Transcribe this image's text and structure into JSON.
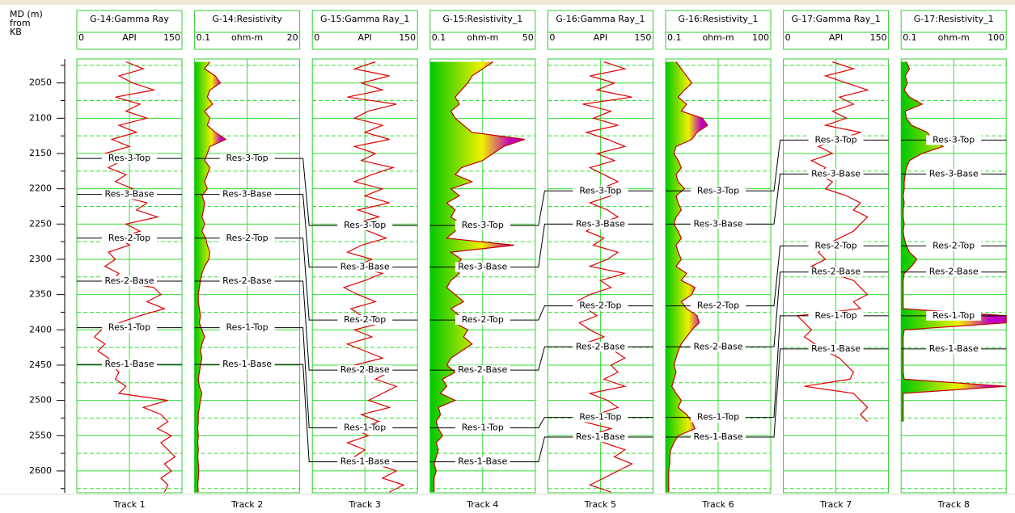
{
  "chart_data": {
    "type": "well_log",
    "depth_label": [
      "MD (m)",
      "from",
      "KB"
    ],
    "ylim": [
      2016,
      2631
    ],
    "yticks": [
      2050,
      2100,
      2150,
      2200,
      2250,
      2300,
      2350,
      2400,
      2450,
      2500,
      2550,
      2600
    ],
    "minor_yticks": [
      2025,
      2075,
      2125,
      2175,
      2225,
      2275,
      2325,
      2375,
      2425,
      2475,
      2525,
      2575,
      2625
    ],
    "grid": true,
    "fill_colors": [
      "#00c800",
      "#f0f000",
      "#c000c0"
    ],
    "depths": [
      2020,
      2030,
      2040,
      2050,
      2060,
      2070,
      2080,
      2090,
      2100,
      2110,
      2120,
      2130,
      2140,
      2150,
      2160,
      2170,
      2180,
      2190,
      2200,
      2210,
      2220,
      2230,
      2240,
      2250,
      2260,
      2270,
      2280,
      2290,
      2300,
      2310,
      2320,
      2330,
      2340,
      2350,
      2360,
      2370,
      2380,
      2390,
      2400,
      2410,
      2420,
      2430,
      2440,
      2450,
      2460,
      2470,
      2480,
      2490,
      2500,
      2510,
      2520,
      2530,
      2540,
      2550,
      2560,
      2570,
      2580,
      2590,
      2600,
      2610,
      2620,
      2630
    ],
    "tracks": [
      {
        "name": "Track 1",
        "title": "G-14:Gamma Ray",
        "unit": "API",
        "xlim": [
          0,
          150
        ],
        "color": "#e00000",
        "fill": false,
        "values": [
          70,
          95,
          60,
          80,
          110,
          55,
          90,
          70,
          100,
          60,
          85,
          50,
          75,
          40,
          65,
          45,
          70,
          55,
          80,
          60,
          100,
          85,
          115,
          70,
          90,
          60,
          75,
          45,
          55,
          40,
          60,
          50,
          110,
          120,
          100,
          125,
          90,
          60,
          35,
          25,
          40,
          30,
          45,
          50,
          60,
          55,
          70,
          60,
          130,
          95,
          120,
          130,
          115,
          135,
          120,
          130,
          140,
          125,
          135,
          120,
          130,
          125
        ]
      },
      {
        "name": "Track 2",
        "title": "G-14:Resistivity",
        "unit": "ohm-m",
        "xlim": [
          0.1,
          20
        ],
        "color": "#c00000",
        "fill": true,
        "values": [
          3,
          2,
          4,
          5,
          3,
          2.5,
          3.5,
          2,
          3,
          2.5,
          4,
          6,
          3,
          2.5,
          2,
          3,
          2.5,
          2,
          2.5,
          1.5,
          2,
          1.8,
          1.5,
          2,
          1.5,
          2.2,
          2.5,
          3,
          2.8,
          2,
          1.5,
          1.2,
          1,
          0.8,
          0.8,
          1,
          1.2,
          1,
          1.5,
          2,
          1.5,
          1.2,
          1.5,
          1.2,
          1,
          0.8,
          1,
          1.5,
          1.2,
          1,
          0.8,
          0.8,
          0.7,
          0.8,
          0.7,
          0.8,
          0.7,
          0.8,
          0.9,
          0.8,
          0.7,
          0.8
        ]
      },
      {
        "name": "Track 3",
        "title": "G-15:Gamma Ray_1",
        "unit": "API",
        "xlim": [
          0,
          150
        ],
        "color": "#e00000",
        "fill": false,
        "values": [
          90,
          60,
          110,
          70,
          100,
          50,
          120,
          80,
          60,
          100,
          75,
          110,
          60,
          90,
          70,
          115,
          85,
          60,
          100,
          75,
          110,
          65,
          95,
          55,
          80,
          105,
          70,
          50,
          85,
          60,
          100,
          75,
          45,
          65,
          90,
          55,
          70,
          100,
          60,
          85,
          50,
          75,
          100,
          60,
          110,
          90,
          120,
          100,
          80,
          110,
          70,
          95,
          60,
          80,
          50,
          75,
          60,
          90,
          120,
          100,
          130,
          110
        ]
      },
      {
        "name": "Track 4",
        "title": "G-15:Resistivity_1",
        "unit": "ohm-m",
        "xlim": [
          0.1,
          50
        ],
        "color": "#c00000",
        "fill": true,
        "values": [
          30,
          25,
          20,
          18,
          15,
          12,
          14,
          10,
          12,
          16,
          20,
          45,
          35,
          30,
          25,
          15,
          12,
          20,
          10,
          14,
          8,
          12,
          10,
          15,
          12,
          8,
          40,
          10,
          15,
          12,
          14,
          10,
          8,
          12,
          16,
          10,
          14,
          12,
          18,
          16,
          20,
          15,
          10,
          8,
          12,
          6,
          8,
          5,
          12,
          4,
          5,
          3,
          4,
          6,
          3,
          4,
          3,
          2,
          3,
          2,
          2,
          2
        ]
      },
      {
        "name": "Track 5",
        "title": "G-16:Gamma Ray_1",
        "unit": "API",
        "xlim": [
          0,
          150
        ],
        "color": "#e00000",
        "fill": false,
        "values": [
          80,
          110,
          60,
          95,
          70,
          120,
          50,
          90,
          65,
          100,
          55,
          85,
          110,
          70,
          95,
          60,
          80,
          100,
          75,
          90,
          60,
          85,
          100,
          70,
          55,
          80,
          65,
          100,
          85,
          60,
          110,
          75,
          90,
          60,
          40,
          55,
          70,
          45,
          60,
          80,
          50,
          95,
          110,
          90,
          100,
          80,
          110,
          60,
          85,
          100,
          70,
          50,
          90,
          60,
          80,
          110,
          95,
          120,
          100,
          80,
          60,
          90
        ]
      },
      {
        "name": "Track 6",
        "title": "G-16:Resistivity_1",
        "unit": "ohm-m",
        "xlim": [
          0.1,
          100
        ],
        "color": "#c00000",
        "fill": true,
        "values": [
          10,
          15,
          20,
          25,
          18,
          12,
          20,
          15,
          35,
          40,
          30,
          25,
          10,
          8,
          12,
          15,
          10,
          12,
          18,
          10,
          12,
          15,
          10,
          8,
          12,
          15,
          10,
          12,
          15,
          10,
          20,
          15,
          28,
          25,
          15,
          20,
          30,
          32,
          25,
          20,
          15,
          12,
          10,
          8,
          10,
          8,
          6,
          10,
          15,
          12,
          20,
          25,
          28,
          12,
          8,
          5,
          4,
          4,
          3,
          3,
          3,
          3
        ]
      },
      {
        "name": "Track 7",
        "title": "G-17:Gamma Ray_1",
        "unit": "API",
        "xlim": [
          0,
          150
        ],
        "color": "#e00000",
        "fill": false,
        "values": [
          70,
          100,
          60,
          90,
          120,
          80,
          100,
          70,
          90,
          60,
          110,
          80,
          50,
          70,
          40,
          60,
          50,
          70,
          60,
          90,
          110,
          100,
          120,
          110,
          100,
          80,
          60,
          50,
          60,
          40,
          70,
          100,
          110,
          120,
          100,
          110,
          20,
          30,
          40,
          30,
          45,
          60,
          80,
          90,
          100,
          95,
          30,
          100,
          110,
          120,
          110,
          120,
          null,
          null,
          null,
          null,
          null,
          null,
          null,
          null,
          null,
          null
        ]
      },
      {
        "name": "Track 8",
        "title": "G-17:Resistivity_1",
        "unit": "ohm-m",
        "xlim": [
          0.1,
          100
        ],
        "color": "#c00000",
        "fill": true,
        "values": [
          5,
          8,
          4,
          6,
          3,
          8,
          20,
          4,
          5,
          10,
          25,
          30,
          40,
          20,
          8,
          5,
          4,
          3,
          3,
          2,
          3,
          2,
          2,
          3,
          2,
          3,
          5,
          8,
          15,
          10,
          3,
          2,
          2,
          2,
          2,
          2,
          100,
          100,
          3,
          2,
          2,
          2,
          2,
          2,
          2,
          3,
          100,
          2,
          2,
          2,
          2,
          2,
          null,
          null,
          null,
          null,
          null,
          null,
          null,
          null,
          null,
          null
        ]
      }
    ],
    "tops": [
      {
        "name": "Res-3-Top",
        "depths": [
          2157,
          2252,
          2203,
          2131
        ]
      },
      {
        "name": "Res-3-Base",
        "depths": [
          2208,
          2311,
          2250,
          2179
        ]
      },
      {
        "name": "Res-2-Top",
        "depths": [
          2270,
          2386,
          2366,
          2281
        ]
      },
      {
        "name": "Res-2-Base",
        "depths": [
          2331,
          2457,
          2424,
          2318
        ]
      },
      {
        "name": "Res-1-Top",
        "depths": [
          2397,
          2539,
          2524,
          2380
        ]
      },
      {
        "name": "Res-1-Base",
        "depths": [
          2449,
          2587,
          2552,
          2427
        ]
      }
    ]
  }
}
